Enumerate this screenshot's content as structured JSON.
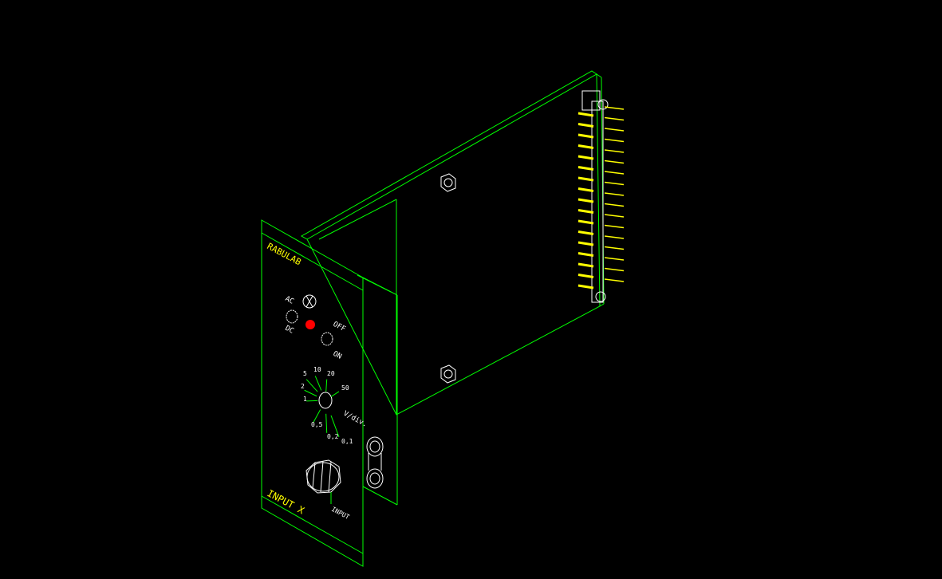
{
  "colors": {
    "background": "#000000",
    "outline": "#00ff00",
    "text": "#ffff00",
    "detail": "#ffffff",
    "led": "#ff0000",
    "pins": "#ffff00"
  },
  "panel": {
    "brand": "RABULAB",
    "title": "INPUT X",
    "input_label": "INPUT"
  },
  "switches": {
    "coupling_top": "AC",
    "coupling_bottom": "DC",
    "power_top": "OFF",
    "power_bottom": "ON"
  },
  "range_selector": {
    "unit": "V/div.",
    "values": [
      "5",
      "10",
      "20",
      "50",
      "2",
      "1",
      "0,5",
      "0,2",
      "0,1"
    ]
  },
  "icons": [
    "knob-icon",
    "led-icon",
    "toggle-switch-icon",
    "bnc-connector-icon",
    "screw-icon",
    "edge-connector-icon"
  ]
}
